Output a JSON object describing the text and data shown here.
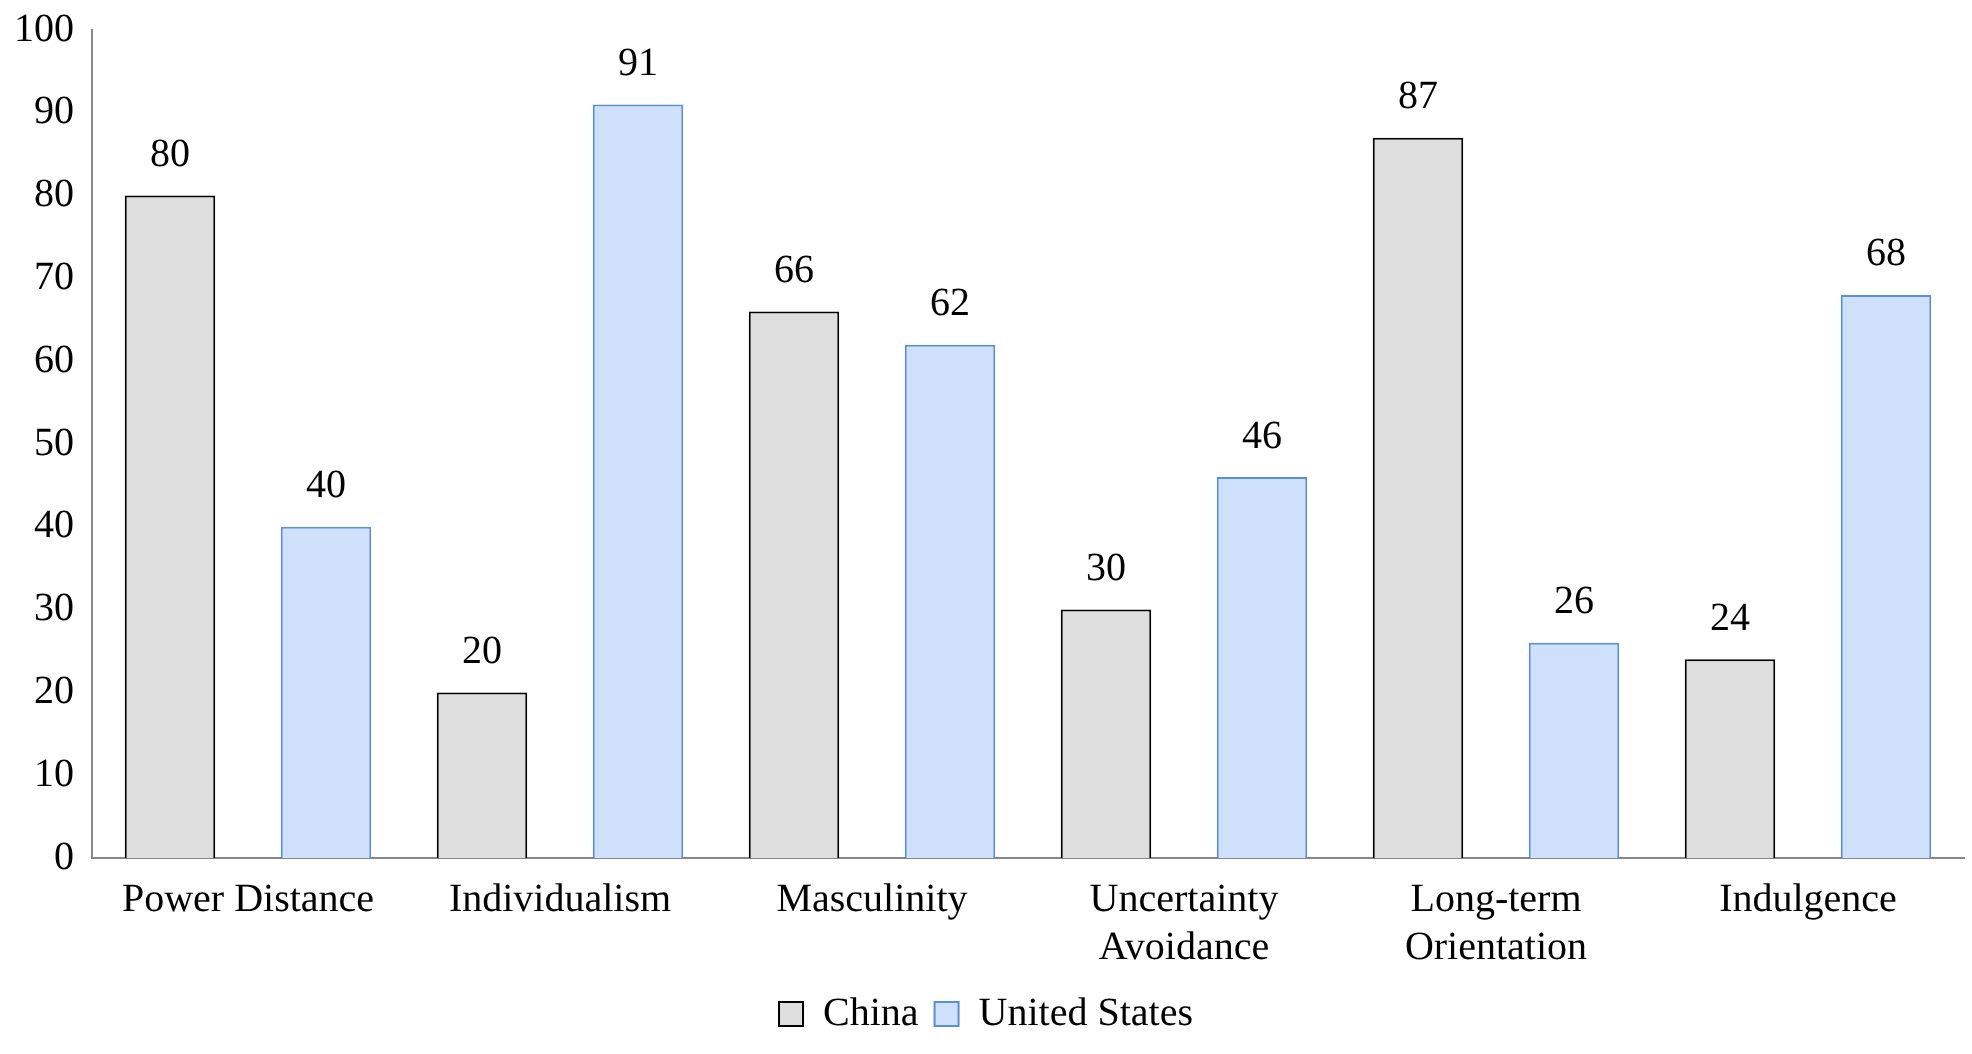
{
  "chart_data": {
    "type": "bar",
    "categories": [
      "Power Distance",
      "Individualism",
      "Masculinity",
      "Uncertainty Avoidance",
      "Long-term Orientation",
      "Indulgence"
    ],
    "series": [
      {
        "name": "China",
        "color": "#dedede",
        "values": [
          80,
          20,
          66,
          30,
          87,
          24
        ]
      },
      {
        "name": "United States",
        "color": "#cfe1fa",
        "values": [
          40,
          91,
          62,
          46,
          26,
          68
        ]
      }
    ],
    "ylim": [
      0,
      100
    ],
    "yticks": [
      0,
      10,
      20,
      30,
      40,
      50,
      60,
      70,
      80,
      90,
      100
    ],
    "grid": false,
    "legend": "bottom",
    "data_labels": true
  }
}
